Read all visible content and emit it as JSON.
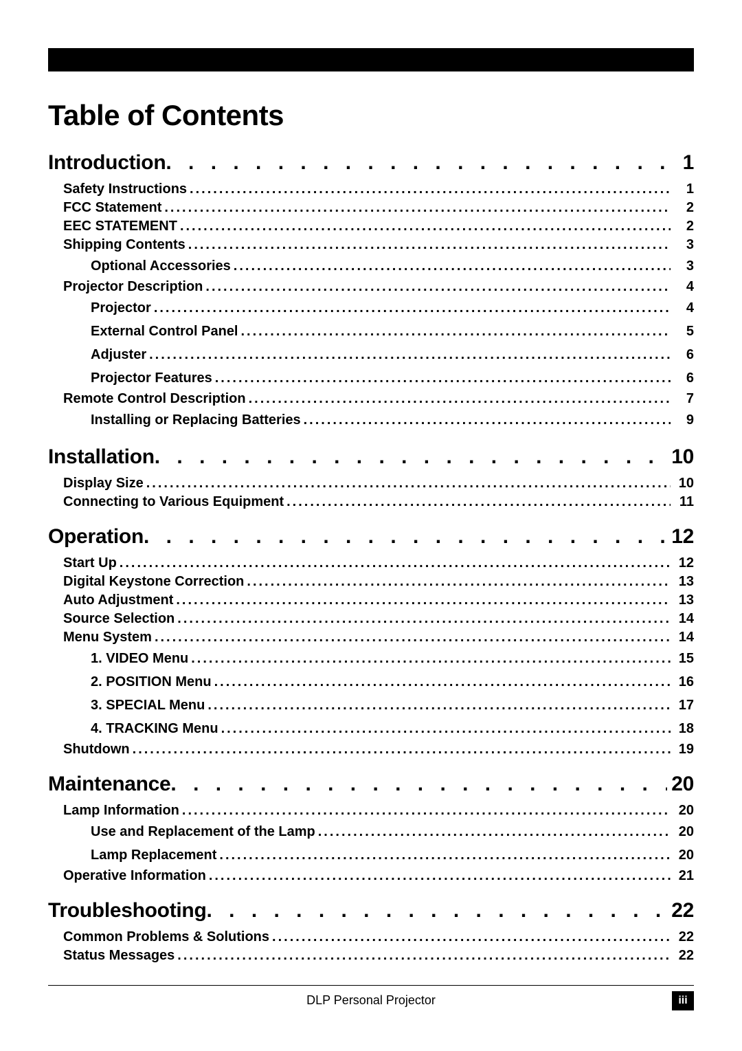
{
  "title": "Table of Contents",
  "colors": {
    "bar_color": "#000000",
    "text_color": "#000000",
    "background_color": "#ffffff",
    "footer_pagebox_bg": "#000000",
    "footer_pagebox_fg": "#ffffff"
  },
  "typography": {
    "title_fontsize_pt": 32,
    "section_fontsize_pt": 22,
    "subsection_fontsize_pt": 15,
    "footer_fontsize_pt": 13,
    "font_family": "Arial"
  },
  "toc": [
    {
      "level": 0,
      "label": "Introduction",
      "page": "1"
    },
    {
      "level": 1,
      "label": "Safety Instructions",
      "page": "1"
    },
    {
      "level": 1,
      "label": "FCC Statement",
      "page": "2"
    },
    {
      "level": 1,
      "label": "EEC STATEMENT",
      "page": "2"
    },
    {
      "level": 1,
      "label": "Shipping Contents",
      "page": "3"
    },
    {
      "level": 2,
      "label": "Optional Accessories",
      "page": "3"
    },
    {
      "level": 1,
      "label": "Projector Description",
      "page": "4"
    },
    {
      "level": 2,
      "label": "Projector",
      "page": "4"
    },
    {
      "level": 2,
      "label": "External Control Panel",
      "page": "5"
    },
    {
      "level": 2,
      "label": "Adjuster",
      "page": "6"
    },
    {
      "level": 2,
      "label": "Projector Features",
      "page": "6"
    },
    {
      "level": 1,
      "label": "Remote Control Description",
      "page": "7"
    },
    {
      "level": 2,
      "label": "Installing or Replacing Batteries",
      "page": "9"
    },
    {
      "level": 0,
      "label": "Installation",
      "page": "10"
    },
    {
      "level": 1,
      "label": "Display Size",
      "page": "10"
    },
    {
      "level": 1,
      "label": "Connecting to Various Equipment",
      "page": "11"
    },
    {
      "level": 0,
      "label": "Operation",
      "page": "12"
    },
    {
      "level": 1,
      "label": "Start Up",
      "page": "12"
    },
    {
      "level": 1,
      "label": "Digital Keystone Correction",
      "page": "13"
    },
    {
      "level": 1,
      "label": "Auto Adjustment",
      "page": "13"
    },
    {
      "level": 1,
      "label": "Source Selection",
      "page": "14"
    },
    {
      "level": 1,
      "label": "Menu System",
      "page": "14"
    },
    {
      "level": 2,
      "label": "1. VIDEO Menu",
      "page": "15"
    },
    {
      "level": 2,
      "label": "2. POSITION Menu",
      "page": "16"
    },
    {
      "level": 2,
      "label": "3. SPECIAL Menu",
      "page": "17"
    },
    {
      "level": 2,
      "label": "4. TRACKING Menu",
      "page": "18"
    },
    {
      "level": 1,
      "label": "Shutdown",
      "page": "19"
    },
    {
      "level": 0,
      "label": "Maintenance",
      "page": "20"
    },
    {
      "level": 1,
      "label": "Lamp Information",
      "page": "20"
    },
    {
      "level": 2,
      "label": "Use and Replacement of the Lamp",
      "page": "20"
    },
    {
      "level": 2,
      "label": "Lamp Replacement",
      "page": "20"
    },
    {
      "level": 1,
      "label": "Operative Information",
      "page": "21"
    },
    {
      "level": 0,
      "label": "Troubleshooting",
      "page": "22"
    },
    {
      "level": 1,
      "label": "Common Problems & Solutions",
      "page": "22"
    },
    {
      "level": 1,
      "label": "Status Messages",
      "page": "22"
    }
  ],
  "footer": {
    "text": "DLP Personal Projector",
    "page_number": "iii"
  }
}
